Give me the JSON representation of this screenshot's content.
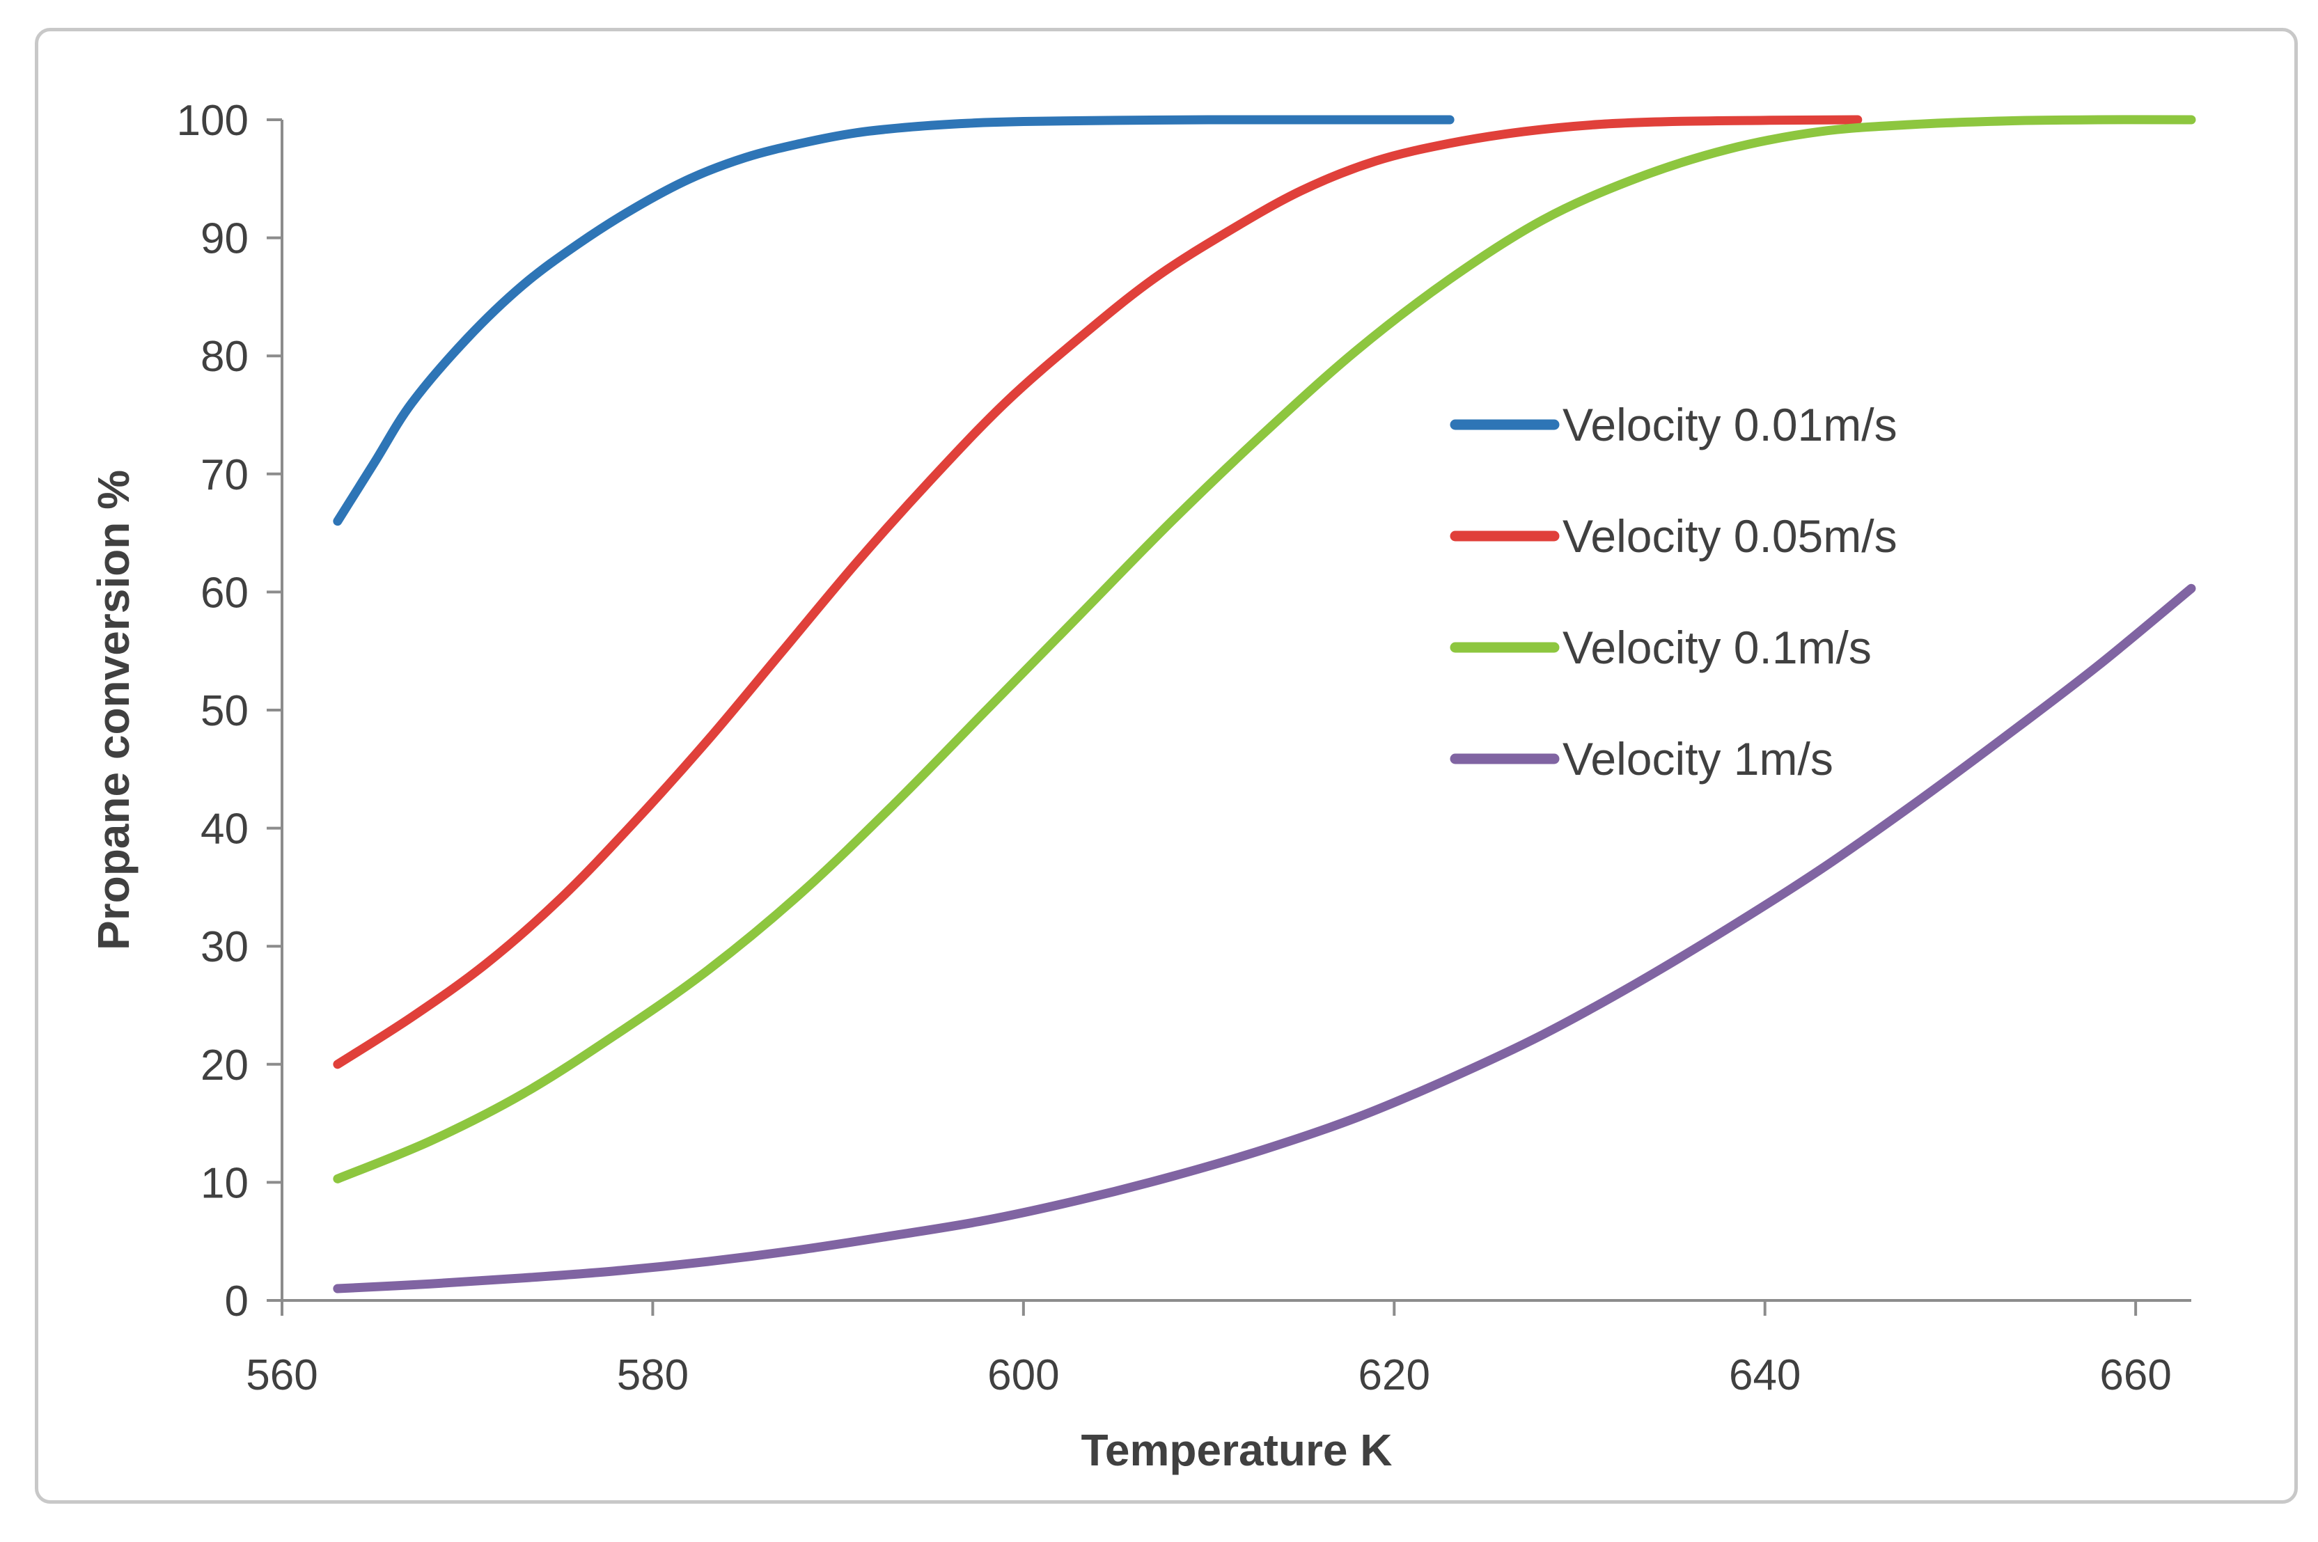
{
  "chart_data": {
    "type": "line",
    "title": "",
    "xlabel": "Temperature K",
    "ylabel": "Propane conversion %",
    "xlim": [
      560,
      663
    ],
    "ylim": [
      0,
      100
    ],
    "xticks": [
      560,
      580,
      600,
      620,
      640,
      660
    ],
    "yticks": [
      0,
      10,
      20,
      30,
      40,
      50,
      60,
      70,
      80,
      90,
      100
    ],
    "grid": false,
    "legend_position": "center-right",
    "series": [
      {
        "name": "Velocity 0.01m/s",
        "color": "#2E75B6",
        "x": [
          563,
          565,
          567,
          570,
          573,
          576,
          579,
          582,
          585,
          588,
          591,
          594,
          597,
          600,
          605,
          610,
          615,
          620,
          623
        ],
        "y": [
          66,
          71,
          76,
          81.5,
          86,
          89.5,
          92.5,
          95,
          96.8,
          98,
          98.9,
          99.4,
          99.7,
          99.85,
          99.95,
          100,
          100,
          100,
          100
        ]
      },
      {
        "name": "Velocity 0.05m/s",
        "color": "#E0403A",
        "x": [
          563,
          567,
          571,
          575,
          579,
          583,
          587,
          591,
          595,
          599,
          603,
          607,
          611,
          615,
          619,
          623,
          627,
          631,
          635,
          640,
          645
        ],
        "y": [
          20,
          24,
          28.5,
          34,
          40.5,
          47.5,
          55,
          62.5,
          69.5,
          76,
          81.5,
          86.5,
          90.5,
          94,
          96.5,
          98,
          99,
          99.6,
          99.85,
          99.95,
          100
        ]
      },
      {
        "name": "Velocity 0.1m/s",
        "color": "#8DC63F",
        "x": [
          563,
          568,
          573,
          578,
          583,
          588,
          593,
          598,
          603,
          608,
          613,
          618,
          623,
          628,
          633,
          638,
          643,
          648,
          653,
          658,
          663
        ],
        "y": [
          10.3,
          13.5,
          17.5,
          22.5,
          28,
          34.5,
          42,
          50,
          58,
          66,
          73.5,
          80.5,
          86.5,
          91.5,
          95,
          97.5,
          99,
          99.6,
          99.9,
          100,
          100
        ]
      },
      {
        "name": "Velocity 1m/s",
        "color": "#8064A2",
        "x": [
          563,
          568,
          573,
          578,
          583,
          588,
          593,
          598,
          603,
          608,
          613,
          618,
          623,
          628,
          633,
          638,
          643,
          648,
          653,
          658,
          663
        ],
        "y": [
          1,
          1.4,
          1.9,
          2.5,
          3.3,
          4.3,
          5.5,
          6.8,
          8.5,
          10.5,
          12.8,
          15.5,
          18.8,
          22.5,
          26.8,
          31.5,
          36.5,
          42,
          47.8,
          53.8,
          60.3
        ]
      }
    ]
  }
}
